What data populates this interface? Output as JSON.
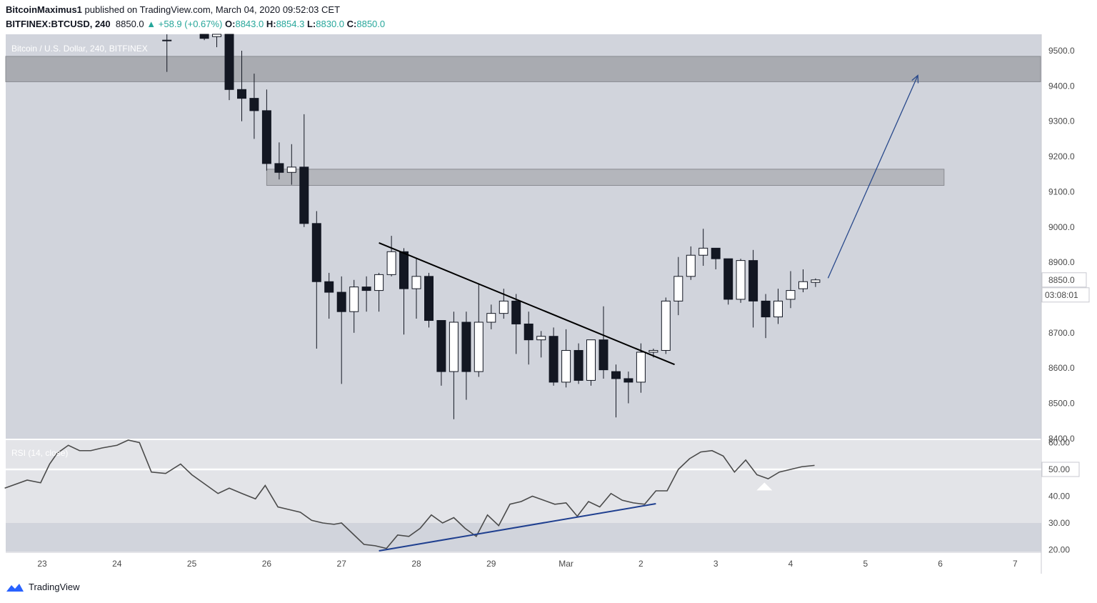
{
  "header": {
    "author": "BitcoinMaximus1",
    "published_text": "published on TradingView.com, March 04, 2020 09:52:03 CET",
    "symbol": "BITFINEX:BTCUSD, 240",
    "last": "8850.0",
    "change": "+58.9 (+0.67%)",
    "o_label": "O:",
    "o_value": "8843.0",
    "h_label": "H:",
    "h_value": "8854.3",
    "l_label": "L:",
    "l_value": "8830.0",
    "c_label": "C:",
    "c_value": "8850.0"
  },
  "footer": {
    "brand": "TradingView",
    "logo_icon": "tradingview-logo-icon"
  },
  "colors": {
    "panel_bg": "#d1d4dc",
    "zone_upper": "#a9abb1",
    "zone_lower": "#b4b6bc",
    "bear": "#131722",
    "bull": "#ffffff",
    "projection": "#2a4a8c",
    "rsi_divergence": "#1f3f8f",
    "rsi_line": "#4a4a4a",
    "rsi_band": "#e3e4e8"
  },
  "chart_data": [
    {
      "type": "candlestick",
      "title": "Bitcoin / U.S. Dollar, 240, BITFINEX",
      "ylim": [
        8400,
        9560
      ],
      "y_ticks": [
        "9500.0",
        "9400.0",
        "9300.0",
        "9200.0",
        "9100.0",
        "9000.0",
        "8900.0",
        "8700.0",
        "8600.0",
        "8500.0",
        "8400.0"
      ],
      "x_ticks": [
        "23",
        "24",
        "25",
        "26",
        "27",
        "28",
        "29",
        "Mar",
        "2",
        "3",
        "4",
        "5",
        "6",
        "7"
      ],
      "last_price_label": "8850.0",
      "countdown_label": "03:08:01",
      "candles": [
        {
          "d": 24.667,
          "o": 9530,
          "h": 9600,
          "l": 9440,
          "c": 9530
        },
        {
          "d": 25.167,
          "o": 9560,
          "h": 9580,
          "l": 9530,
          "c": 9535
        },
        {
          "d": 25.333,
          "o": 9540,
          "h": 9580,
          "l": 9510,
          "c": 9550
        },
        {
          "d": 25.5,
          "o": 9560,
          "h": 9600,
          "l": 9360,
          "c": 9390
        },
        {
          "d": 25.667,
          "o": 9390,
          "h": 9500,
          "l": 9300,
          "c": 9365
        },
        {
          "d": 25.833,
          "o": 9365,
          "h": 9435,
          "l": 9250,
          "c": 9330
        },
        {
          "d": 26.0,
          "o": 9330,
          "h": 9390,
          "l": 9160,
          "c": 9180
        },
        {
          "d": 26.167,
          "o": 9180,
          "h": 9240,
          "l": 9135,
          "c": 9155
        },
        {
          "d": 26.333,
          "o": 9155,
          "h": 9235,
          "l": 9120,
          "c": 9170
        },
        {
          "d": 26.5,
          "o": 9170,
          "h": 9320,
          "l": 9000,
          "c": 9010
        },
        {
          "d": 26.667,
          "o": 9010,
          "h": 9045,
          "l": 8655,
          "c": 8845
        },
        {
          "d": 26.833,
          "o": 8845,
          "h": 8870,
          "l": 8740,
          "c": 8815
        },
        {
          "d": 27.0,
          "o": 8815,
          "h": 8860,
          "l": 8555,
          "c": 8760
        },
        {
          "d": 27.167,
          "o": 8760,
          "h": 8850,
          "l": 8700,
          "c": 8830
        },
        {
          "d": 27.333,
          "o": 8830,
          "h": 8860,
          "l": 8760,
          "c": 8820
        },
        {
          "d": 27.5,
          "o": 8820,
          "h": 8870,
          "l": 8760,
          "c": 8865
        },
        {
          "d": 27.667,
          "o": 8865,
          "h": 8975,
          "l": 8860,
          "c": 8930
        },
        {
          "d": 27.833,
          "o": 8930,
          "h": 8940,
          "l": 8695,
          "c": 8825
        },
        {
          "d": 28.0,
          "o": 8825,
          "h": 8910,
          "l": 8740,
          "c": 8860
        },
        {
          "d": 28.167,
          "o": 8860,
          "h": 8870,
          "l": 8715,
          "c": 8735
        },
        {
          "d": 28.333,
          "o": 8735,
          "h": 8735,
          "l": 8550,
          "c": 8590
        },
        {
          "d": 28.5,
          "o": 8590,
          "h": 8760,
          "l": 8455,
          "c": 8730
        },
        {
          "d": 28.667,
          "o": 8730,
          "h": 8760,
          "l": 8510,
          "c": 8590
        },
        {
          "d": 28.833,
          "o": 8590,
          "h": 8840,
          "l": 8575,
          "c": 8730
        },
        {
          "d": 29.0,
          "o": 8730,
          "h": 8780,
          "l": 8710,
          "c": 8755
        },
        {
          "d": 29.167,
          "o": 8755,
          "h": 8825,
          "l": 8740,
          "c": 8790
        },
        {
          "d": 29.333,
          "o": 8790,
          "h": 8810,
          "l": 8640,
          "c": 8725
        },
        {
          "d": 29.5,
          "o": 8725,
          "h": 8760,
          "l": 8610,
          "c": 8680
        },
        {
          "d": 29.667,
          "o": 8680,
          "h": 8705,
          "l": 8630,
          "c": 8690
        },
        {
          "d": 29.833,
          "o": 8690,
          "h": 8715,
          "l": 8550,
          "c": 8560
        },
        {
          "d": 30.0,
          "o": 8560,
          "h": 8710,
          "l": 8545,
          "c": 8650
        },
        {
          "d": 30.167,
          "o": 8650,
          "h": 8670,
          "l": 8555,
          "c": 8565
        },
        {
          "d": 30.333,
          "o": 8565,
          "h": 8680,
          "l": 8550,
          "c": 8680
        },
        {
          "d": 30.5,
          "o": 8680,
          "h": 8775,
          "l": 8570,
          "c": 8595
        },
        {
          "d": 30.667,
          "o": 8590,
          "h": 8610,
          "l": 8460,
          "c": 8570
        },
        {
          "d": 30.833,
          "o": 8570,
          "h": 8590,
          "l": 8500,
          "c": 8560
        },
        {
          "d": 31.0,
          "o": 8560,
          "h": 8670,
          "l": 8530,
          "c": 8645
        },
        {
          "d": 31.167,
          "o": 8645,
          "h": 8655,
          "l": 8630,
          "c": 8650
        },
        {
          "d": 31.333,
          "o": 8650,
          "h": 8800,
          "l": 8640,
          "c": 8790
        },
        {
          "d": 31.5,
          "o": 8790,
          "h": 8915,
          "l": 8750,
          "c": 8860
        },
        {
          "d": 31.667,
          "o": 8860,
          "h": 8945,
          "l": 8850,
          "c": 8920
        },
        {
          "d": 31.833,
          "o": 8920,
          "h": 8995,
          "l": 8890,
          "c": 8940
        },
        {
          "d": 32.0,
          "o": 8940,
          "h": 8940,
          "l": 8880,
          "c": 8910
        },
        {
          "d": 32.167,
          "o": 8910,
          "h": 8910,
          "l": 8780,
          "c": 8795
        },
        {
          "d": 32.333,
          "o": 8795,
          "h": 8910,
          "l": 8785,
          "c": 8905
        },
        {
          "d": 32.5,
          "o": 8905,
          "h": 8935,
          "l": 8715,
          "c": 8790
        },
        {
          "d": 32.667,
          "o": 8790,
          "h": 8810,
          "l": 8685,
          "c": 8745
        },
        {
          "d": 32.833,
          "o": 8745,
          "h": 8825,
          "l": 8725,
          "c": 8790
        },
        {
          "d": 33.0,
          "o": 8795,
          "h": 8875,
          "l": 8770,
          "c": 8820
        },
        {
          "d": 33.167,
          "o": 8825,
          "h": 8880,
          "l": 8815,
          "c": 8845
        },
        {
          "d": 33.333,
          "o": 8843,
          "h": 8854.3,
          "l": 8830,
          "c": 8850
        }
      ],
      "zones": [
        {
          "from": 9412,
          "to": 9484,
          "d_start": 22.5,
          "d_end": 36.5
        },
        {
          "from": 9118,
          "to": 9164,
          "d_start": 26.0,
          "d_end": 35.05
        }
      ],
      "trendline": {
        "d1": 27.5,
        "p1": 8955,
        "d2": 31.45,
        "p2": 8610
      },
      "projection_arrow": {
        "d1": 33.5,
        "p1": 8855,
        "d2": 34.7,
        "p2": 9430
      }
    },
    {
      "type": "line",
      "title": "RSI (14, close)",
      "ylim": [
        18,
        62
      ],
      "y_ticks": [
        "60.00",
        "50.00",
        "40.00",
        "30.00",
        "20.00"
      ],
      "band": [
        30,
        70
      ],
      "midline": 50,
      "values": [
        [
          22.5,
          43
        ],
        [
          22.8,
          46
        ],
        [
          22.98,
          45
        ],
        [
          23.1,
          52
        ],
        [
          23.2,
          56
        ],
        [
          23.35,
          59
        ],
        [
          23.5,
          57
        ],
        [
          23.65,
          57
        ],
        [
          23.8,
          58
        ],
        [
          24.0,
          59
        ],
        [
          24.15,
          61
        ],
        [
          24.3,
          60
        ],
        [
          24.46,
          49
        ],
        [
          24.65,
          48.5
        ],
        [
          24.85,
          52
        ],
        [
          25.0,
          48
        ],
        [
          25.2,
          44
        ],
        [
          25.35,
          41
        ],
        [
          25.5,
          43
        ],
        [
          25.67,
          41
        ],
        [
          25.85,
          39
        ],
        [
          25.98,
          44
        ],
        [
          26.15,
          36
        ],
        [
          26.3,
          35
        ],
        [
          26.45,
          34
        ],
        [
          26.6,
          31
        ],
        [
          26.75,
          30
        ],
        [
          26.9,
          29.5
        ],
        [
          27.0,
          30
        ],
        [
          27.15,
          26
        ],
        [
          27.3,
          22
        ],
        [
          27.45,
          21.5
        ],
        [
          27.6,
          20.5
        ],
        [
          27.75,
          25.5
        ],
        [
          27.9,
          25
        ],
        [
          28.05,
          28
        ],
        [
          28.2,
          33
        ],
        [
          28.35,
          30
        ],
        [
          28.5,
          32
        ],
        [
          28.65,
          28
        ],
        [
          28.8,
          25
        ],
        [
          28.95,
          33
        ],
        [
          29.1,
          29
        ],
        [
          29.25,
          37
        ],
        [
          29.4,
          38
        ],
        [
          29.55,
          40
        ],
        [
          29.7,
          38.5
        ],
        [
          29.85,
          37
        ],
        [
          30.0,
          37.5
        ],
        [
          30.15,
          32.5
        ],
        [
          30.3,
          38
        ],
        [
          30.45,
          36
        ],
        [
          30.6,
          41
        ],
        [
          30.75,
          38.5
        ],
        [
          30.9,
          37.5
        ],
        [
          31.05,
          37
        ],
        [
          31.2,
          42
        ],
        [
          31.35,
          42
        ],
        [
          31.5,
          50
        ],
        [
          31.65,
          54
        ],
        [
          31.8,
          56.5
        ],
        [
          31.95,
          57
        ],
        [
          32.1,
          55
        ],
        [
          32.25,
          49
        ],
        [
          32.4,
          53.5
        ],
        [
          32.55,
          48
        ],
        [
          32.7,
          46.5
        ],
        [
          32.85,
          49
        ],
        [
          33.0,
          50
        ],
        [
          33.15,
          51
        ],
        [
          33.32,
          51.5
        ]
      ],
      "divergence_line": {
        "d1": 27.5,
        "v1": 18.8,
        "d2": 31.2,
        "v2": 37.2
      },
      "marker": {
        "d": 32.65,
        "v": 43.5
      }
    }
  ]
}
